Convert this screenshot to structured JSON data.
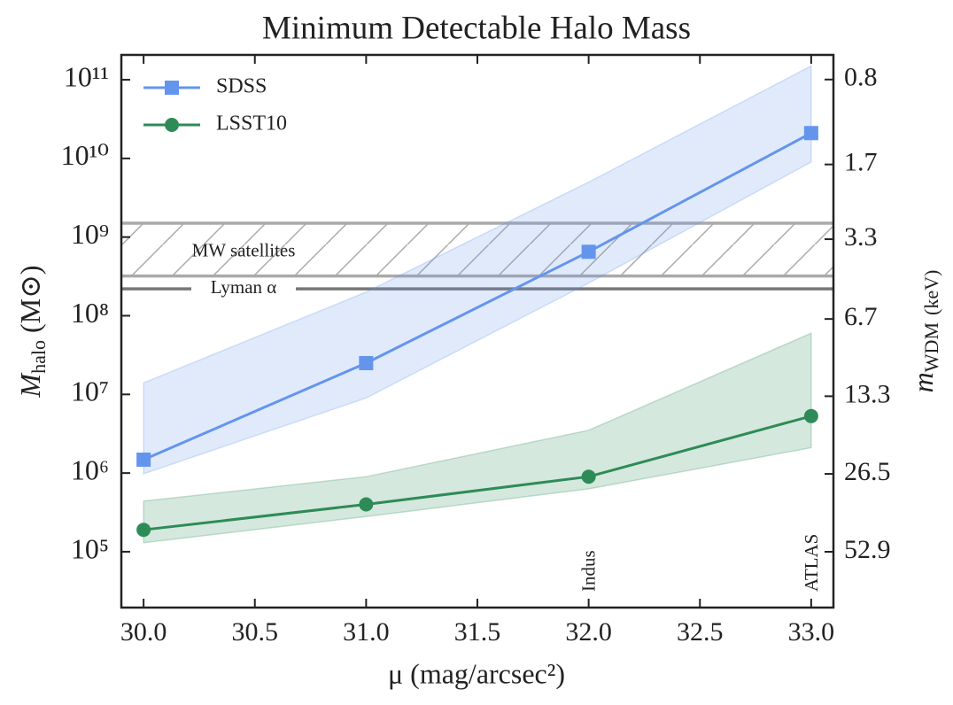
{
  "chart_data": {
    "type": "line",
    "title": "Minimum Detectable Halo Mass",
    "xlabel": "μ (mag/arcsec²)",
    "ylabel": {
      "symbol": "M",
      "subscript": "halo",
      "unit": "(M⊙)"
    },
    "y2label": {
      "symbol": "m",
      "subscript": "WDM",
      "unit": "(keV)"
    },
    "x": [
      30,
      31,
      32,
      33
    ],
    "series": [
      {
        "name": "SDSS",
        "color": "#6495ed",
        "marker": "square",
        "values": [
          1480000,
          25000000,
          650000000,
          21000000000
        ],
        "lower": [
          980000,
          9000000,
          260000000,
          9000000000
        ],
        "upper": [
          14000000,
          200000000,
          5000000000,
          150000000000
        ]
      },
      {
        "name": "LSST10",
        "color": "#2e8b57",
        "marker": "circle",
        "values": [
          190000,
          400000,
          900000,
          5300000
        ],
        "lower": [
          130000,
          280000,
          630000,
          2100000
        ],
        "upper": [
          440000,
          900000,
          3500000,
          60000000
        ]
      }
    ],
    "xlim": [
      29.9,
      33.1
    ],
    "xticks": [
      {
        "value": 30,
        "label": "30.0"
      },
      30.5,
      {
        "value": 31,
        "label": "31.0"
      },
      31.5,
      {
        "value": 32,
        "label": "32.0"
      },
      32.5,
      {
        "value": 33,
        "label": "33.0"
      }
    ],
    "ylim": [
      19500,
      207000000000
    ],
    "yscale": "log",
    "yticks": [
      {
        "value": 100000,
        "label": "10⁵"
      },
      {
        "value": 1000000,
        "label": "10⁶"
      },
      {
        "value": 10000000,
        "label": "10⁷"
      },
      {
        "value": 100000000,
        "label": "10⁸"
      },
      {
        "value": 1000000000,
        "label": "10⁹"
      },
      {
        "value": 10000000000,
        "label": "10¹⁰"
      },
      {
        "value": 100000000000,
        "label": "10¹¹"
      }
    ],
    "y2lim": [
      86.8,
      0.643
    ],
    "y2scale": "log",
    "y2ticks": [
      0.8,
      1.7,
      3.3,
      6.7,
      13.3,
      26.5,
      52.9
    ],
    "regions": [
      {
        "label": "MW satellites",
        "ymin": 320000000,
        "ymax": 1500000000,
        "color": "#aaaaaa"
      }
    ],
    "hlines": [
      {
        "label": "Lyman α",
        "y": 220000000,
        "color": "#777777"
      }
    ],
    "annotations": [
      {
        "text": "Indus",
        "x": 32
      },
      {
        "text": "ATLAS",
        "x": 33
      }
    ],
    "legend": "upper left"
  }
}
